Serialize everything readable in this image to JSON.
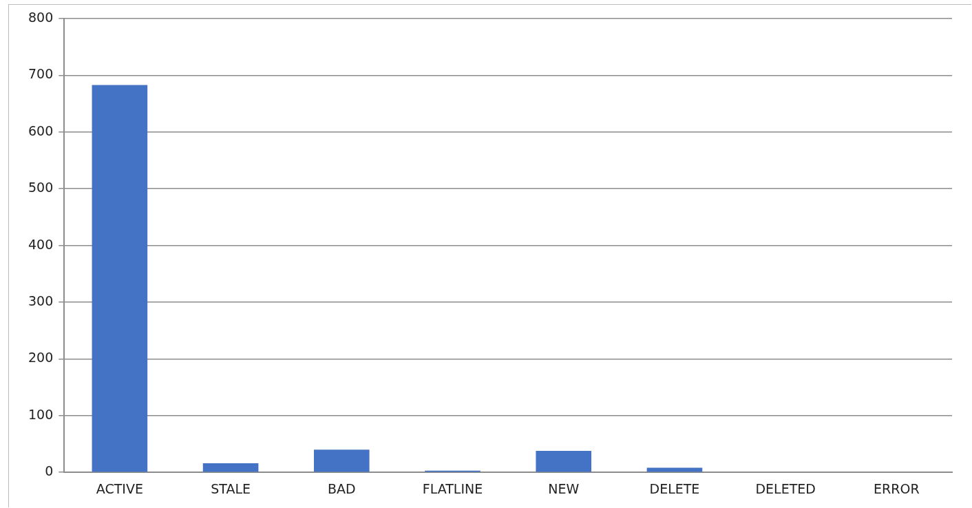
{
  "chart_data": {
    "type": "bar",
    "categories": [
      "ACTIVE",
      "STALE",
      "BAD",
      "FLATLINE",
      "NEW",
      "DELETE",
      "DELETED",
      "ERROR"
    ],
    "values": [
      683,
      16,
      40,
      3,
      38,
      8,
      0,
      0
    ],
    "color": "#4472c4",
    "ylim": [
      0,
      800
    ],
    "yticks": [
      0,
      100,
      200,
      300,
      400,
      500,
      600,
      700,
      800
    ],
    "grid": "y",
    "legend": false
  }
}
